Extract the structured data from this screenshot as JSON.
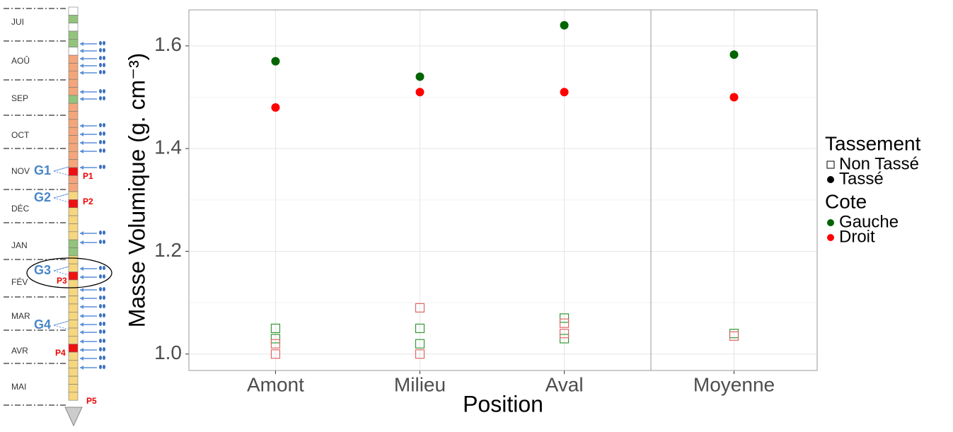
{
  "timeline": {
    "months": [
      "JUI",
      "AOÛ",
      "SEP",
      "OCT",
      "NOV",
      "DÉC",
      "JAN",
      "FÉV",
      "MAR",
      "AVR",
      "MAI"
    ],
    "groups": [
      "G1",
      "G2",
      "G3",
      "G4"
    ],
    "points": [
      "P1",
      "P2",
      "P3",
      "P4",
      "P5"
    ]
  },
  "chart_data": {
    "type": "scatter",
    "xlabel": "Position",
    "ylabel": "Masse Volumique (g. cm⁻³)",
    "categories": [
      "Amont",
      "Milieu",
      "Aval",
      "Moyenne"
    ],
    "ylim": [
      0.968,
      1.67
    ],
    "yticks": [
      {
        "value": 1,
        "label": "1.0"
      },
      1.2,
      1.4,
      1.6
    ],
    "y_minor_ticks": [
      1.1,
      1.3,
      1.5
    ],
    "grid": true,
    "legends": [
      {
        "title": "Tassement",
        "entries": [
          {
            "label": "Non Tassé",
            "shape": "square"
          },
          {
            "label": "Tassé",
            "shape": "circle"
          }
        ]
      },
      {
        "title": "Cote",
        "entries": [
          {
            "label": "Gauche",
            "color": "#006400"
          },
          {
            "label": "Droit",
            "color": "#ff0000"
          }
        ]
      }
    ],
    "series": [
      {
        "shape": "circle",
        "color": "#006400",
        "x": [
          "Amont",
          "Milieu",
          "Aval",
          "Moyenne"
        ],
        "values": [
          1.57,
          1.54,
          1.64,
          1.583
        ]
      },
      {
        "shape": "circle",
        "color": "#ff0000",
        "x": [
          "Amont",
          "Milieu",
          "Aval",
          "Moyenne"
        ],
        "values": [
          1.48,
          1.51,
          1.51,
          1.5
        ]
      },
      {
        "shape": "square",
        "color": "#339933",
        "x": [
          "Amont",
          "Amont",
          "Milieu",
          "Milieu",
          "Aval",
          "Aval",
          "Moyenne"
        ],
        "values": [
          1.05,
          1.03,
          1.05,
          1.02,
          1.07,
          1.03,
          1.04
        ]
      },
      {
        "shape": "square",
        "color": "#e06666",
        "x": [
          "Amont",
          "Amont",
          "Milieu",
          "Milieu",
          "Aval",
          "Aval",
          "Moyenne"
        ],
        "values": [
          1.02,
          1.0,
          1.09,
          1.0,
          1.06,
          1.04,
          1.035
        ]
      }
    ]
  }
}
